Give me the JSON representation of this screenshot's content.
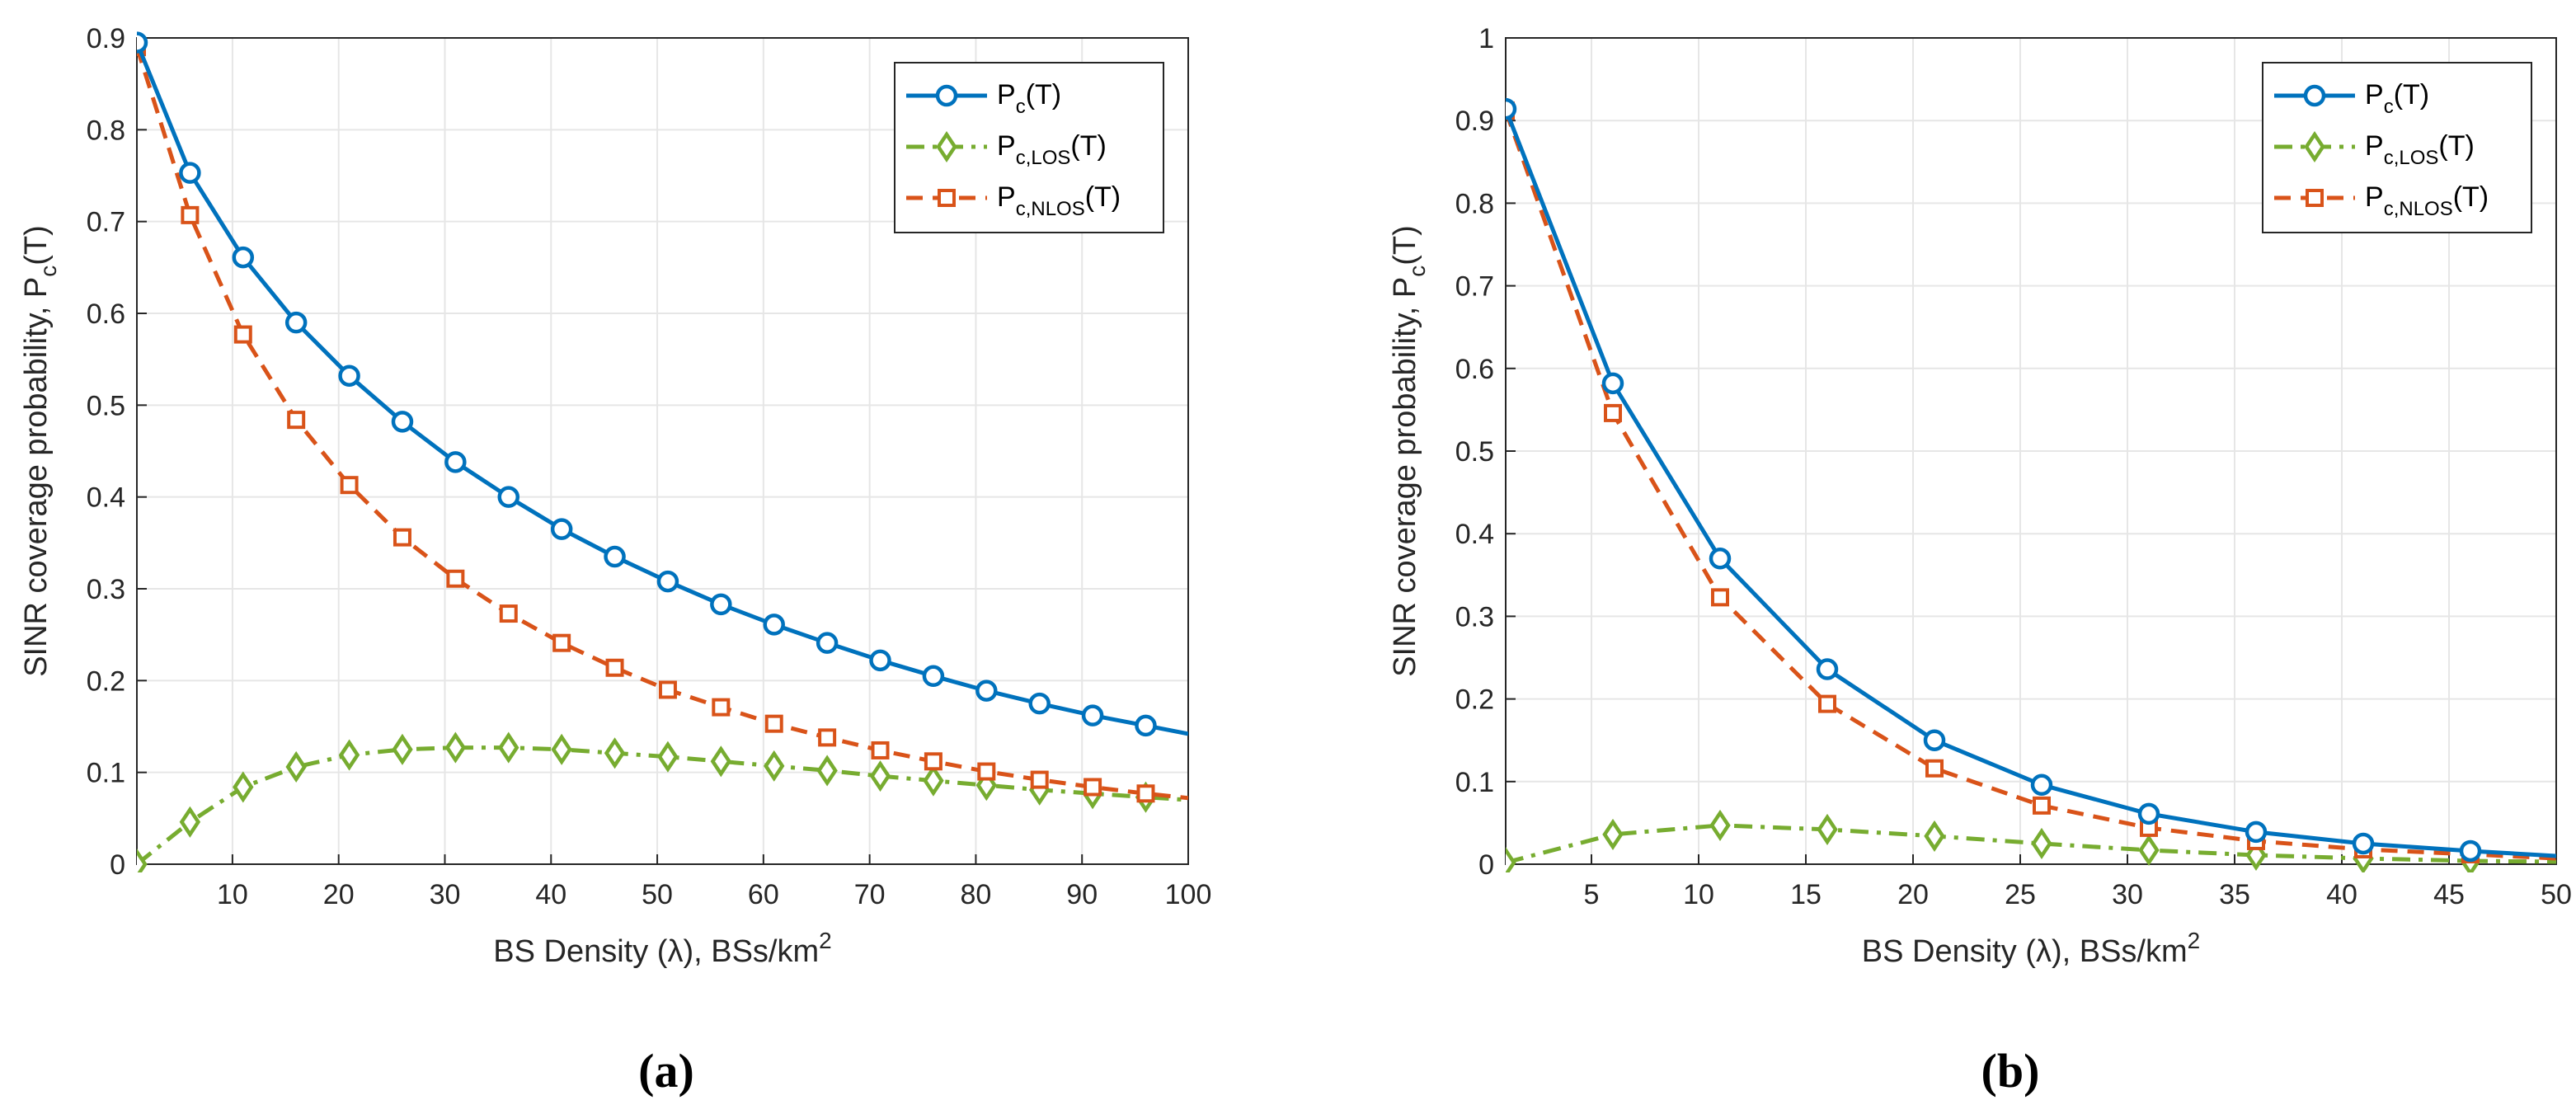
{
  "colors": {
    "pc": "#0072BD",
    "los": "#77AC30",
    "nlos": "#D95319",
    "grid": "#e6e6e6",
    "axis": "#262626"
  },
  "legend_entries": [
    {
      "key": "pc",
      "base": "P",
      "sub": "c",
      "suffix": "(T)",
      "marker": "circle",
      "dash": "solid"
    },
    {
      "key": "los",
      "base": "P",
      "sub": "c,LOS",
      "suffix": "(T)",
      "marker": "diamond",
      "dash": "dashdot"
    },
    {
      "key": "nlos",
      "base": "P",
      "sub": "c,NLOS",
      "suffix": "(T)",
      "marker": "square",
      "dash": "dashed"
    }
  ],
  "chart_data": [
    {
      "panel_label": "(a)",
      "type": "line",
      "xlabel": {
        "text": "BS Density (λ), BSs/km",
        "sup": "2"
      },
      "ylabel": {
        "text": "SINR coverage probability, P",
        "sub": "c",
        "suffix": "(T)"
      },
      "xlim": [
        1,
        100
      ],
      "ylim": [
        0,
        0.9
      ],
      "xticks": [
        10,
        20,
        30,
        40,
        50,
        60,
        70,
        80,
        90,
        100
      ],
      "yticks": [
        0,
        0.1,
        0.2,
        0.3,
        0.4,
        0.5,
        0.6,
        0.7,
        0.8,
        0.9
      ],
      "grid": true,
      "legend_position": "top-right",
      "series": [
        {
          "key": "pc",
          "name": "P_c(T)",
          "x": [
            1,
            6,
            11,
            16,
            21,
            26,
            31,
            36,
            41,
            46,
            51,
            56,
            61,
            66,
            71,
            76,
            81,
            86,
            91,
            96,
            100
          ],
          "y": [
            0.895,
            0.753,
            0.661,
            0.59,
            0.532,
            0.482,
            0.438,
            0.4,
            0.365,
            0.335,
            0.308,
            0.283,
            0.261,
            0.241,
            0.222,
            0.205,
            0.189,
            0.175,
            0.162,
            0.151,
            0.142
          ],
          "markers_x": [
            1,
            6,
            11,
            16,
            21,
            26,
            31,
            36,
            41,
            46,
            51,
            56,
            61,
            66,
            71,
            76,
            81,
            86,
            91,
            96
          ]
        },
        {
          "key": "los",
          "name": "P_c,LOS(T)",
          "x": [
            1,
            6,
            11,
            16,
            21,
            26,
            31,
            36,
            41,
            46,
            51,
            56,
            61,
            66,
            71,
            76,
            81,
            86,
            91,
            96,
            100
          ],
          "y": [
            0.0,
            0.046,
            0.084,
            0.106,
            0.119,
            0.125,
            0.127,
            0.127,
            0.125,
            0.121,
            0.117,
            0.112,
            0.107,
            0.102,
            0.096,
            0.091,
            0.086,
            0.081,
            0.077,
            0.073,
            0.07
          ],
          "markers_x": [
            1,
            6,
            11,
            16,
            21,
            26,
            31,
            36,
            41,
            46,
            51,
            56,
            61,
            66,
            71,
            76,
            81,
            86,
            91,
            96
          ]
        },
        {
          "key": "nlos",
          "name": "P_c,NLOS(T)",
          "x": [
            1,
            6,
            11,
            16,
            21,
            26,
            31,
            36,
            41,
            46,
            51,
            56,
            61,
            66,
            71,
            76,
            81,
            86,
            91,
            96,
            100
          ],
          "y": [
            0.89,
            0.707,
            0.577,
            0.484,
            0.413,
            0.356,
            0.311,
            0.273,
            0.241,
            0.214,
            0.19,
            0.171,
            0.153,
            0.138,
            0.124,
            0.112,
            0.101,
            0.092,
            0.084,
            0.077,
            0.072
          ],
          "markers_x": [
            1,
            6,
            11,
            16,
            21,
            26,
            31,
            36,
            41,
            46,
            51,
            56,
            61,
            66,
            71,
            76,
            81,
            86,
            91,
            96
          ]
        }
      ]
    },
    {
      "panel_label": "(b)",
      "type": "line",
      "xlabel": {
        "text": "BS Density (λ), BSs/km",
        "sup": "2"
      },
      "ylabel": {
        "text": "SINR coverage probability, P",
        "sub": "c",
        "suffix": "(T)"
      },
      "xlim": [
        1,
        50
      ],
      "ylim": [
        0,
        1
      ],
      "xticks": [
        5,
        10,
        15,
        20,
        25,
        30,
        35,
        40,
        45,
        50
      ],
      "yticks": [
        0,
        0.1,
        0.2,
        0.3,
        0.4,
        0.5,
        0.6,
        0.7,
        0.8,
        0.9,
        1
      ],
      "grid": true,
      "legend_position": "top-right",
      "series": [
        {
          "key": "pc",
          "name": "P_c(T)",
          "x": [
            1,
            6,
            11,
            16,
            21,
            26,
            31,
            36,
            41,
            46,
            50
          ],
          "y": [
            0.914,
            0.582,
            0.37,
            0.236,
            0.15,
            0.096,
            0.061,
            0.039,
            0.025,
            0.016,
            0.01
          ],
          "markers_x": [
            1,
            6,
            11,
            16,
            21,
            26,
            31,
            36,
            41,
            46
          ]
        },
        {
          "key": "los",
          "name": "P_c,LOS(T)",
          "x": [
            1,
            6,
            11,
            16,
            21,
            26,
            31,
            36,
            41,
            46,
            50
          ],
          "y": [
            0.002,
            0.036,
            0.047,
            0.042,
            0.034,
            0.025,
            0.017,
            0.011,
            0.007,
            0.004,
            0.003
          ],
          "markers_x": [
            1,
            6,
            11,
            16,
            21,
            26,
            31,
            36,
            41,
            46
          ]
        },
        {
          "key": "nlos",
          "name": "P_c,NLOS(T)",
          "x": [
            1,
            6,
            11,
            16,
            21,
            26,
            31,
            36,
            41,
            46,
            50
          ],
          "y": [
            0.912,
            0.546,
            0.323,
            0.194,
            0.116,
            0.071,
            0.044,
            0.028,
            0.018,
            0.012,
            0.007
          ],
          "markers_x": [
            1,
            6,
            11,
            16,
            21,
            26,
            31,
            36,
            41,
            46
          ]
        }
      ]
    }
  ]
}
